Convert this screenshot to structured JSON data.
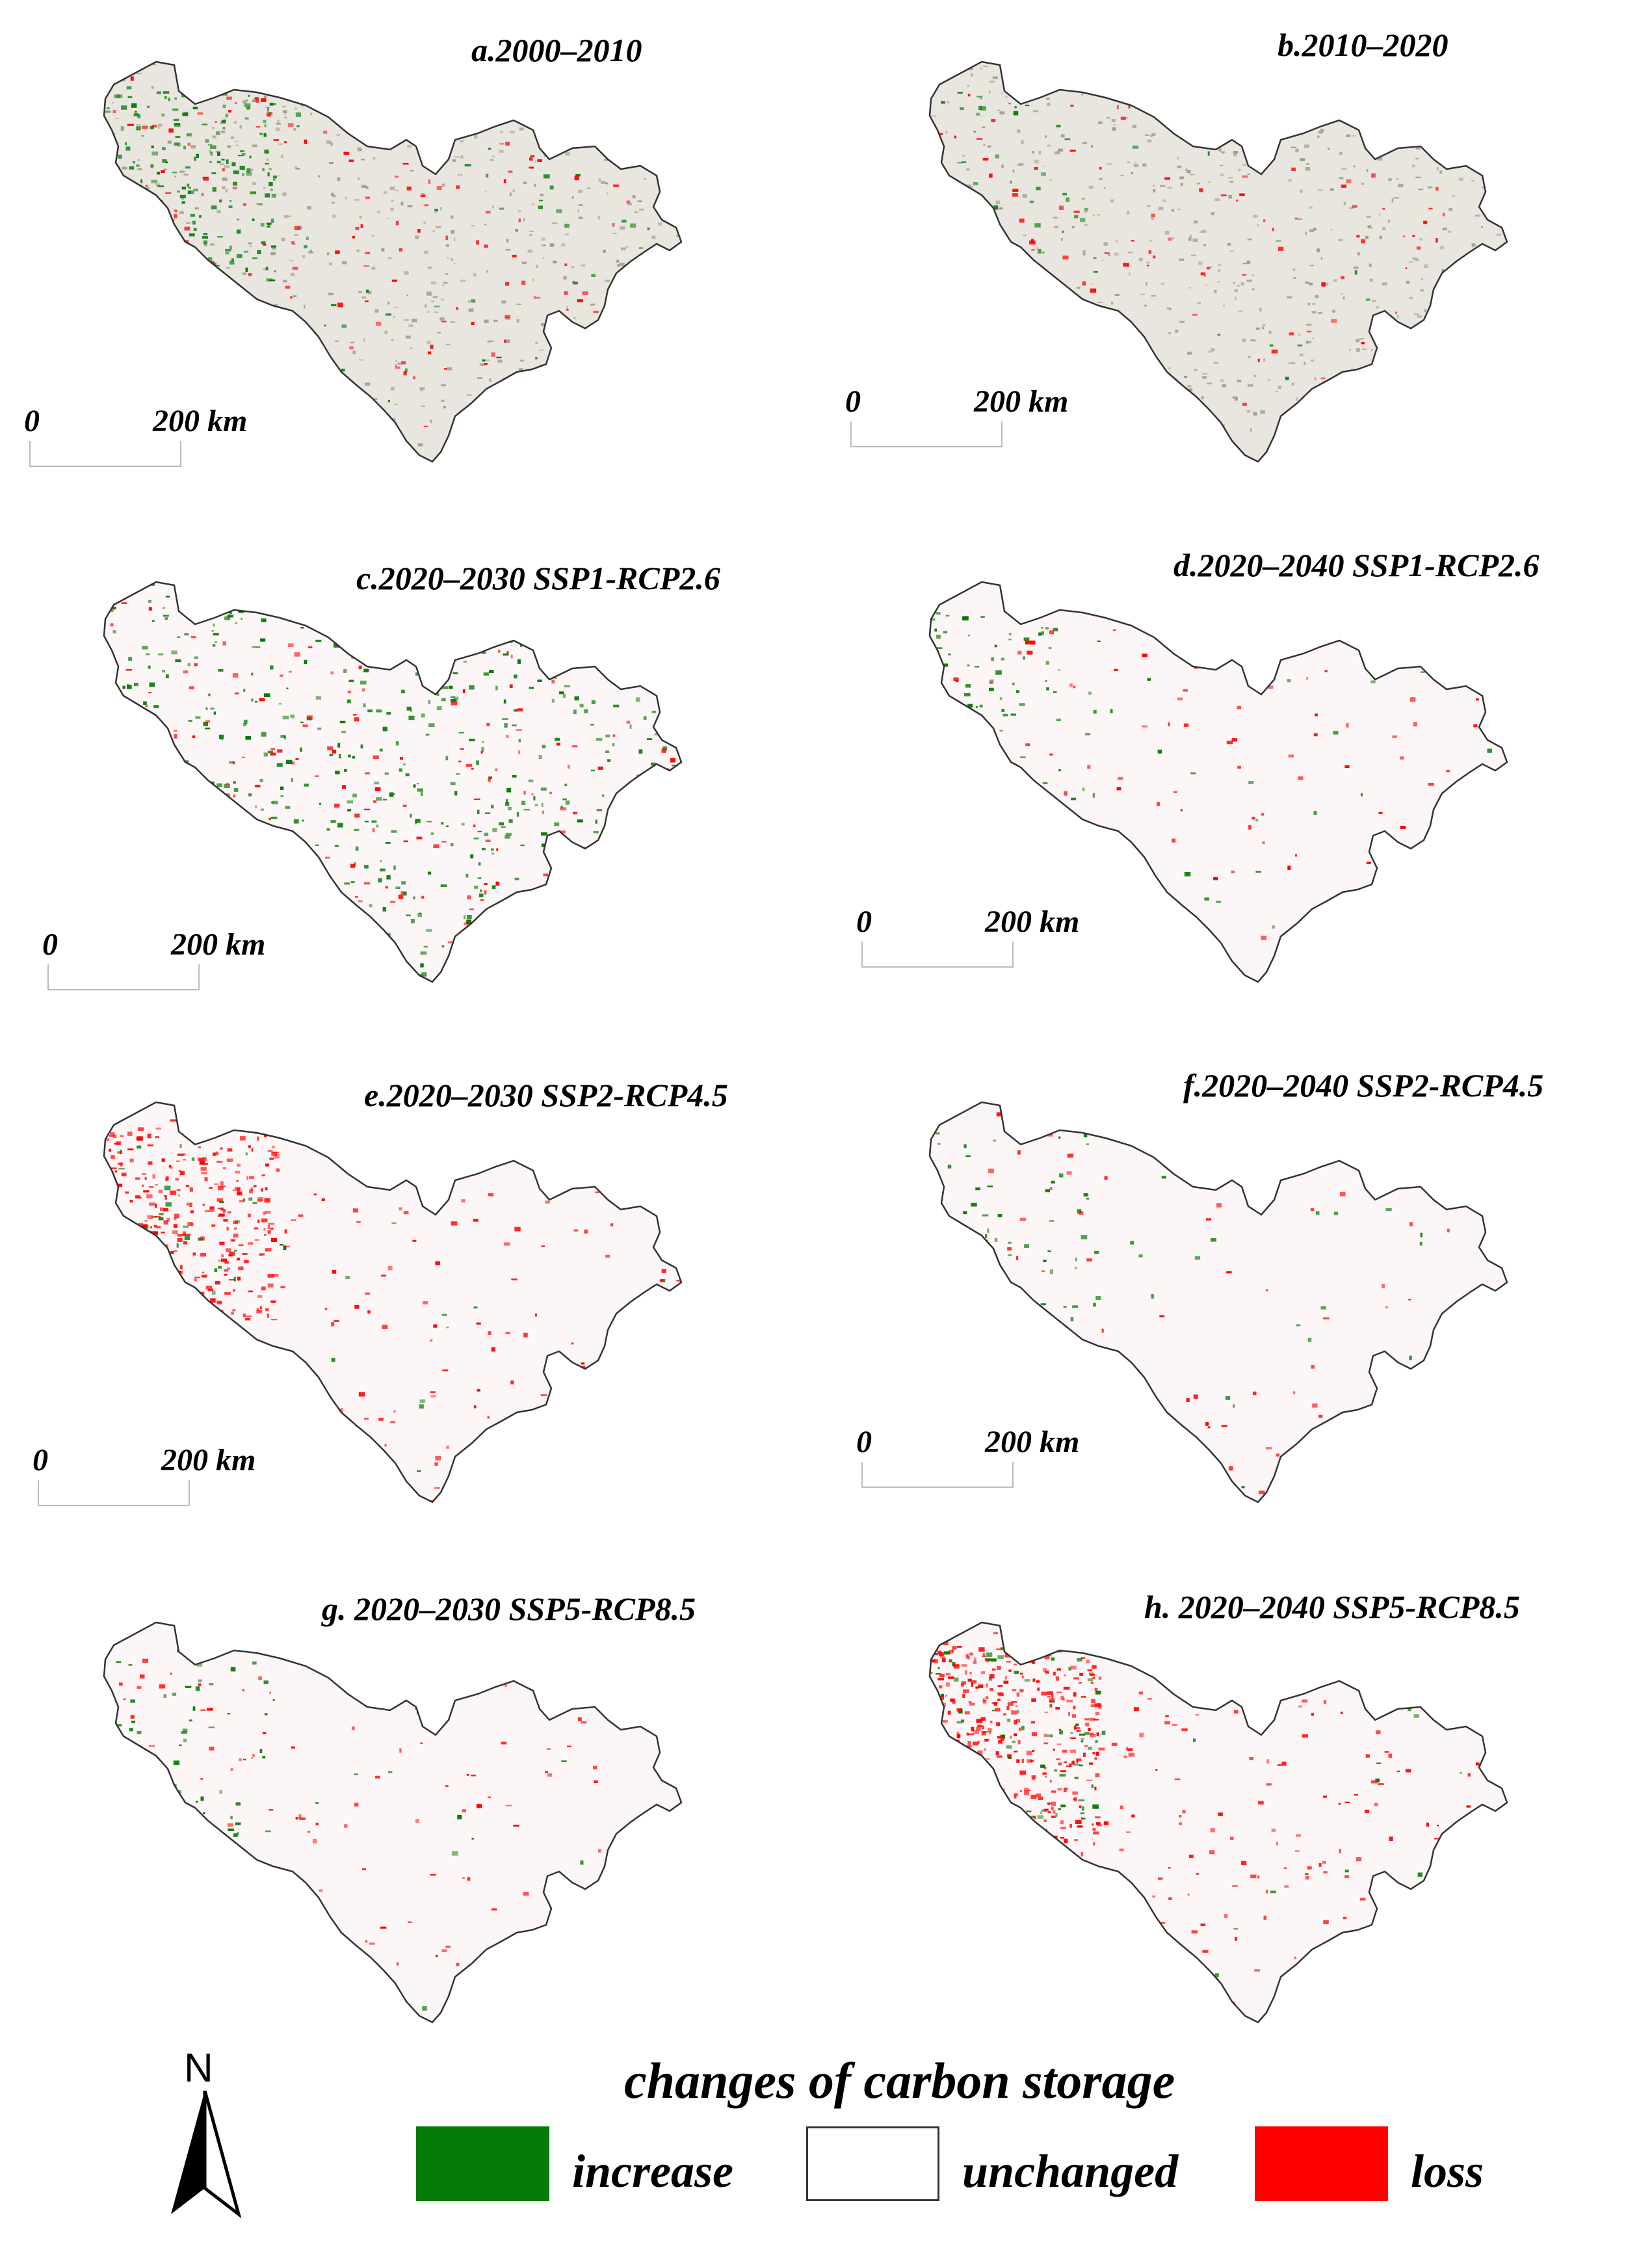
{
  "panels": [
    {
      "id": "a",
      "title": "a.2000–2010",
      "scale_zero": "0",
      "scale_label": "200 km",
      "style": "historic",
      "green_level": 0.35,
      "red_level": 0.3
    },
    {
      "id": "b",
      "title": "b.2010–2020",
      "scale_zero": "0",
      "scale_label": "200 km",
      "style": "historic",
      "green_level": 0.08,
      "red_level": 0.2
    },
    {
      "id": "c",
      "title": "c.2020–2030 SSP1-RCP2.6",
      "scale_zero": "0",
      "scale_label": "200 km",
      "style": "future",
      "green_level": 0.75,
      "red_level": 0.25
    },
    {
      "id": "d",
      "title": "d.2020–2040 SSP1-RCP2.6",
      "scale_zero": "0",
      "scale_label": "200 km",
      "style": "future",
      "green_level": 0.15,
      "red_level": 0.12
    },
    {
      "id": "e",
      "title": "e.2020–2030 SSP2-RCP4.5",
      "scale_zero": "0",
      "scale_label": "200 km",
      "style": "future",
      "green_level": 0.06,
      "red_level": 0.6
    },
    {
      "id": "f",
      "title": "f.2020–2040 SSP2-RCP4.5",
      "scale_zero": "0",
      "scale_label": "200 km",
      "style": "future",
      "green_level": 0.1,
      "red_level": 0.1
    },
    {
      "id": "g",
      "title": "g. 2020–2030 SSP5-RCP8.5",
      "scale_zero": "",
      "scale_label": "",
      "style": "future",
      "green_level": 0.1,
      "red_level": 0.18
    },
    {
      "id": "h",
      "title": "h. 2020–2040 SSP5-RCP8.5",
      "scale_zero": "",
      "scale_label": "",
      "style": "future",
      "green_level": 0.15,
      "red_level": 0.7
    }
  ],
  "north_label": "N",
  "legend": {
    "title": "changes of carbon storage",
    "items": [
      {
        "label": "increase",
        "color": "#067a06"
      },
      {
        "label": "unchanged",
        "color": "#ffffff"
      },
      {
        "label": "loss",
        "color": "#ff0000"
      }
    ]
  }
}
